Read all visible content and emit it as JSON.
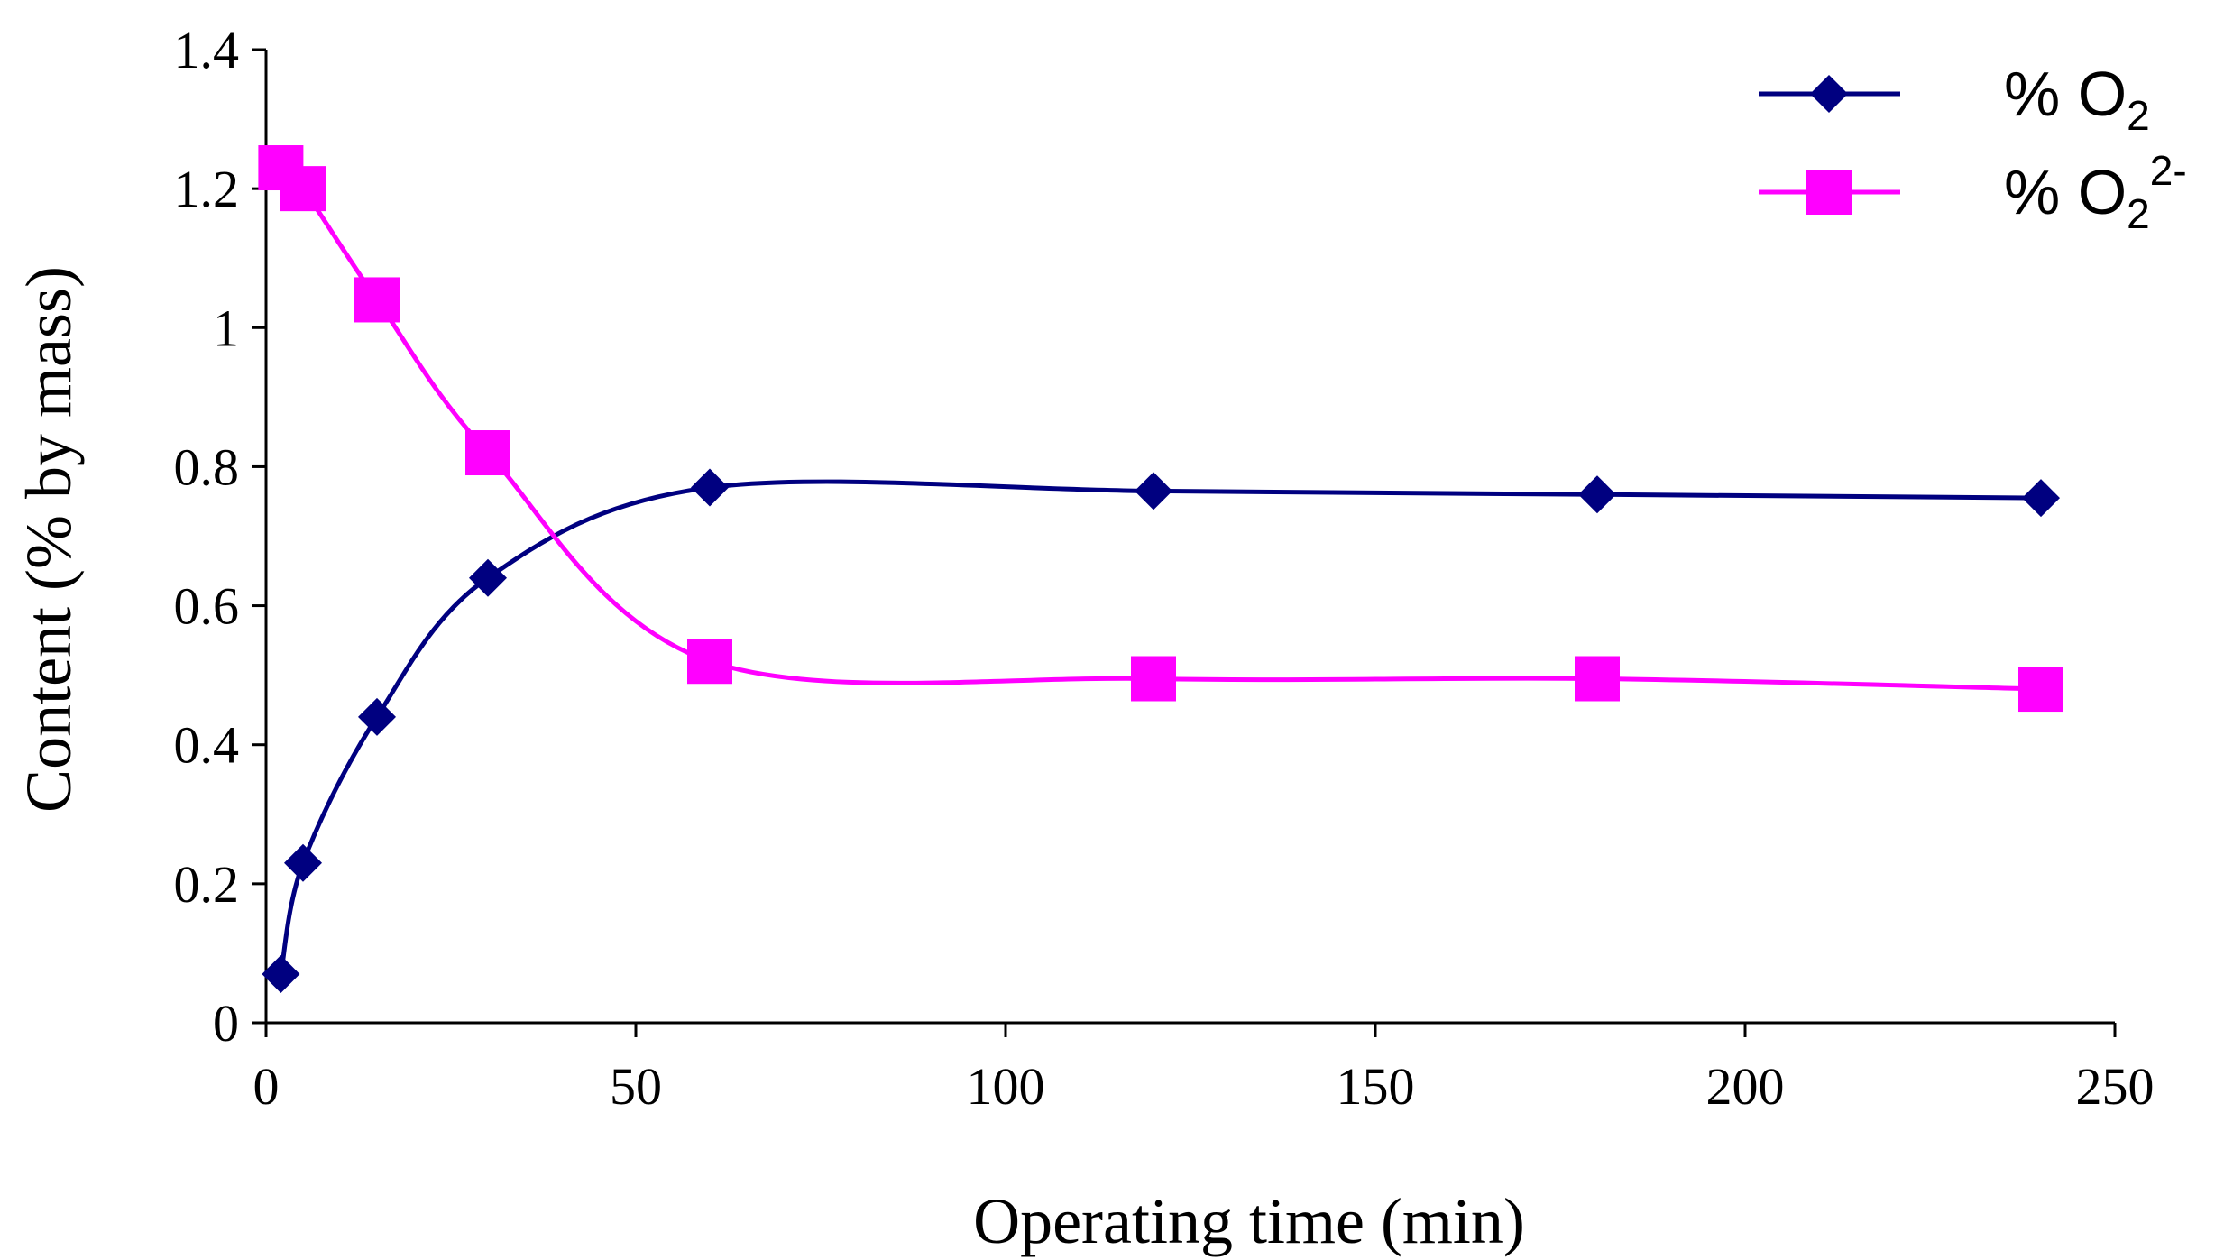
{
  "chart_data": {
    "type": "line",
    "title": "",
    "xlabel": "Operating time (min)",
    "ylabel": "Content (% by mass)",
    "xlim": [
      0,
      250
    ],
    "ylim": [
      0,
      1.4
    ],
    "xticks": [
      0,
      50,
      100,
      150,
      200,
      250
    ],
    "yticks": [
      0,
      0.2,
      0.4,
      0.6,
      0.8,
      1,
      1.2,
      1.4
    ],
    "xtick_labels": [
      "0",
      "50",
      "100",
      "150",
      "200",
      "250"
    ],
    "ytick_labels": [
      "0",
      "0.2",
      "0.4",
      "0.6",
      "0.8",
      "1",
      "1.2",
      "1.4"
    ],
    "grid": false,
    "legend_position": "top-right",
    "smooth": true,
    "series": [
      {
        "name": "% O2",
        "label_main": "% O",
        "label_sub": "2",
        "label_sup": "",
        "color": "#000080",
        "marker": "diamond",
        "x": [
          2,
          5,
          15,
          30,
          60,
          120,
          180,
          240
        ],
        "y": [
          0.07,
          0.23,
          0.44,
          0.64,
          0.77,
          0.765,
          0.76,
          0.755
        ]
      },
      {
        "name": "% O2 2-",
        "label_main": "% O",
        "label_sub": "2",
        "label_sup": "2-",
        "color": "#FF00FF",
        "marker": "square",
        "x": [
          2,
          5,
          15,
          30,
          60,
          120,
          180,
          240
        ],
        "y": [
          1.23,
          1.2,
          1.04,
          0.82,
          0.52,
          0.495,
          0.495,
          0.48
        ]
      }
    ]
  }
}
